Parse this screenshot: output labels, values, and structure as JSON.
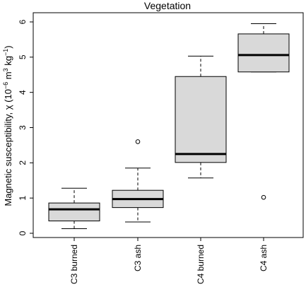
{
  "chart_data": {
    "type": "boxplot",
    "title": "Vegetation",
    "ylabel": {
      "base": "Magnetic susceptibility, χ (10",
      "exp1": "−6",
      "mid": " m",
      "exp2": "3",
      "mid2": " kg",
      "exp3": "−1",
      "end": ")"
    },
    "xlabel": "",
    "ylim": [
      0,
      6
    ],
    "yticks": [
      "0",
      "1",
      "2",
      "3",
      "4",
      "5",
      "6"
    ],
    "categories": [
      "C3 burned",
      "C3 ash",
      "C4 burned",
      "C4 ash"
    ],
    "boxes": [
      {
        "category": "C3 burned",
        "whisker_low": 0.13,
        "q1": 0.35,
        "median": 0.68,
        "q3": 0.86,
        "whisker_high": 1.28,
        "outliers": []
      },
      {
        "category": "C3 ash",
        "whisker_low": 0.32,
        "q1": 0.73,
        "median": 0.97,
        "q3": 1.22,
        "whisker_high": 1.85,
        "outliers": [
          2.6
        ]
      },
      {
        "category": "C4 burned",
        "whisker_low": 1.57,
        "q1": 2.01,
        "median": 2.25,
        "q3": 4.45,
        "whisker_high": 5.03,
        "outliers": []
      },
      {
        "category": "C4 ash",
        "whisker_low": 4.58,
        "q1": 4.58,
        "median": 5.06,
        "q3": 5.66,
        "whisker_high": 5.95,
        "outliers": [
          1.02
        ]
      }
    ],
    "box_fill": "#d9d9d9",
    "grid": false,
    "legend": "none"
  }
}
